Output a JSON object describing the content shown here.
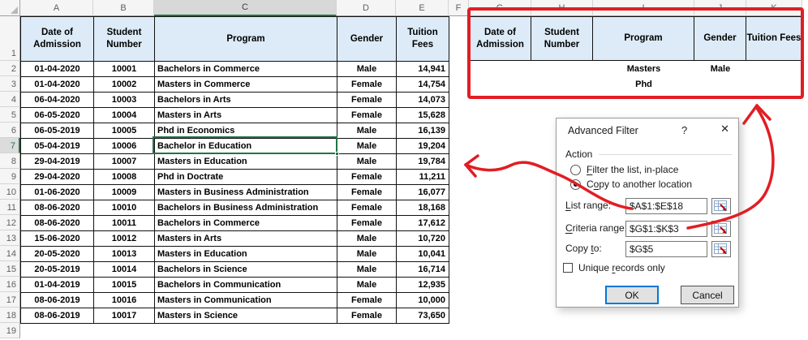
{
  "sheet": {
    "column_letters": [
      "A",
      "B",
      "C",
      "D",
      "E",
      "F",
      "G",
      "H",
      "I",
      "J",
      "K"
    ],
    "row_numbers": [
      "1",
      "2",
      "3",
      "4",
      "5",
      "6",
      "7",
      "8",
      "9",
      "10",
      "11",
      "12",
      "13",
      "14",
      "15",
      "16",
      "17",
      "18",
      "19"
    ],
    "selected_column": "C",
    "selected_row": "7",
    "active_cell_value": "Bachelor in Education"
  },
  "table": {
    "headers": [
      "Date of Admission",
      "Student Number",
      "Program",
      "Gender",
      "Tuition Fees"
    ],
    "rows": [
      [
        "01-04-2020",
        "10001",
        "Bachelors in Commerce",
        "Male",
        "14,941"
      ],
      [
        "01-04-2020",
        "10002",
        "Masters in Commerce",
        "Female",
        "14,754"
      ],
      [
        "06-04-2020",
        "10003",
        "Bachelors in Arts",
        "Female",
        "14,073"
      ],
      [
        "06-05-2020",
        "10004",
        "Masters in Arts",
        "Female",
        "15,628"
      ],
      [
        "06-05-2019",
        "10005",
        "Phd in Economics",
        "Male",
        "16,139"
      ],
      [
        "05-04-2019",
        "10006",
        "Bachelor in Education",
        "Male",
        "19,204"
      ],
      [
        "29-04-2019",
        "10007",
        "Masters in Education",
        "Male",
        "19,784"
      ],
      [
        "29-04-2020",
        "10008",
        "Phd in Doctrate",
        "Female",
        "11,211"
      ],
      [
        "01-06-2020",
        "10009",
        "Masters in Business Administration",
        "Female",
        "16,077"
      ],
      [
        "08-06-2020",
        "10010",
        "Bachelors in Business Administration",
        "Female",
        "18,168"
      ],
      [
        "08-06-2020",
        "10011",
        "Bachelors in Commerce",
        "Female",
        "17,612"
      ],
      [
        "15-06-2020",
        "10012",
        "Masters in Arts",
        "Male",
        "10,720"
      ],
      [
        "20-05-2020",
        "10013",
        "Masters in Education",
        "Male",
        "10,041"
      ],
      [
        "20-05-2019",
        "10014",
        "Bachelors in Science",
        "Male",
        "16,714"
      ],
      [
        "01-04-2019",
        "10015",
        "Bachelors in Communication",
        "Male",
        "12,935"
      ],
      [
        "08-06-2019",
        "10016",
        "Masters in Communication",
        "Female",
        "10,000"
      ],
      [
        "08-06-2019",
        "10017",
        "Masters in Science",
        "Female",
        "73,650"
      ]
    ]
  },
  "criteria": {
    "headers": [
      "Date of Admission",
      "Student Number",
      "Program",
      "Gender",
      "Tuition Fees"
    ],
    "rows": [
      [
        "",
        "",
        "Masters",
        "Male",
        ""
      ],
      [
        "",
        "",
        "Phd",
        "",
        ""
      ]
    ]
  },
  "dialog": {
    "title": "Advanced Filter",
    "help_glyph": "?",
    "close_glyph": "✕",
    "action_label": "Action",
    "radio_filter_in_place": {
      "pre": "",
      "key": "F",
      "post": "ilter the list, in-place"
    },
    "radio_copy_to": {
      "pre": "C",
      "key": "o",
      "post": "py to another location"
    },
    "list_range": {
      "pre": "",
      "key": "L",
      "post": "ist range:",
      "value": "$A$1:$E$18"
    },
    "criteria_range": {
      "pre": "",
      "key": "C",
      "post": "riteria range:",
      "value": "$G$1:$K$3"
    },
    "copy_to": {
      "pre": "Copy ",
      "key": "t",
      "post": "o:",
      "value": "$G$5"
    },
    "unique_records": {
      "pre": "Unique ",
      "key": "r",
      "post": "ecords only"
    },
    "ok_label": "OK",
    "cancel_label": "Cancel"
  },
  "colors": {
    "header_fill": "#dcebf7",
    "selection_green": "#217346",
    "annotation_red": "#e21d24",
    "ok_border_blue": "#0078d7"
  }
}
